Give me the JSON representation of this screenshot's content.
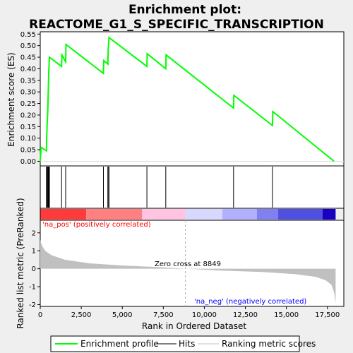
{
  "title_line1": "Enrichment plot:",
  "title_line2": "REACTOME_G1_S_SPECIFIC_TRANSCRIPTION",
  "colors": {
    "enrichment": "#00ff00",
    "hits": "#000000",
    "ranking_fill": "#c0c0c0",
    "pos_label": "#ff0000",
    "neg_label": "#0000ff",
    "zero_line": "#aaaaaa"
  },
  "chart_data": {
    "type": "line",
    "x_range": [
      0,
      18500
    ],
    "x_ticks": [
      0,
      2500,
      5000,
      7500,
      10000,
      12500,
      15000,
      17500
    ],
    "x_tick_labels": [
      "0",
      "2,500",
      "5,000",
      "7,500",
      "10,000",
      "12,500",
      "15,000",
      "17,500"
    ],
    "xlabel": "Rank in Ordered Dataset",
    "es_panel": {
      "ylabel": "Enrichment score (ES)",
      "ylim": [
        -0.02,
        0.56
      ],
      "y_ticks": [
        0.0,
        0.05,
        0.1,
        0.15,
        0.2,
        0.25,
        0.3,
        0.35,
        0.4,
        0.45,
        0.5,
        0.55
      ],
      "y_tick_labels": [
        "0.00",
        "0.05",
        "0.10",
        "0.15",
        "0.20",
        "0.25",
        "0.30",
        "0.35",
        "0.40",
        "0.45",
        "0.50",
        "0.55"
      ],
      "series_name": "Enrichment profile",
      "points": [
        [
          0,
          0.0
        ],
        [
          50,
          0.06
        ],
        [
          380,
          0.045
        ],
        [
          390,
          0.1
        ],
        [
          420,
          0.16
        ],
        [
          460,
          0.22
        ],
        [
          480,
          0.28
        ],
        [
          500,
          0.33
        ],
        [
          520,
          0.39
        ],
        [
          560,
          0.45
        ],
        [
          1300,
          0.41
        ],
        [
          1320,
          0.46
        ],
        [
          1550,
          0.43
        ],
        [
          1570,
          0.505
        ],
        [
          3850,
          0.38
        ],
        [
          3870,
          0.435
        ],
        [
          4120,
          0.42
        ],
        [
          4140,
          0.48
        ],
        [
          4190,
          0.535
        ],
        [
          6500,
          0.41
        ],
        [
          6520,
          0.465
        ],
        [
          7650,
          0.4
        ],
        [
          7670,
          0.46
        ],
        [
          11780,
          0.23
        ],
        [
          11800,
          0.285
        ],
        [
          14150,
          0.155
        ],
        [
          14170,
          0.215
        ],
        [
          17900,
          0.0
        ]
      ]
    },
    "hits": [
      380,
      390,
      420,
      460,
      480,
      500,
      520,
      560,
      1300,
      1550,
      3850,
      4120,
      4140,
      4190,
      6500,
      7650,
      11780,
      14150
    ],
    "heat_bands": [
      {
        "start": 0,
        "end": 2800,
        "color": "#ff3a3a"
      },
      {
        "start": 2800,
        "end": 6200,
        "color": "#ff8080"
      },
      {
        "start": 6200,
        "end": 8849,
        "color": "#ffc4e0"
      },
      {
        "start": 8849,
        "end": 11100,
        "color": "#d8d8ff"
      },
      {
        "start": 11100,
        "end": 13200,
        "color": "#b0b0ff"
      },
      {
        "start": 13200,
        "end": 14500,
        "color": "#8080f0"
      },
      {
        "start": 14500,
        "end": 17200,
        "color": "#5050e0"
      },
      {
        "start": 17200,
        "end": 18000,
        "color": "#1800c0"
      }
    ],
    "rank_panel": {
      "ylabel": "Ranked list metric (PreRanked)",
      "ylim": [
        -2.1,
        2.7
      ],
      "y_ticks": [
        -2,
        -1,
        0,
        1,
        2
      ],
      "y_tick_labels": [
        "-2",
        "-1",
        "0",
        "1",
        "2"
      ],
      "series_name": "Ranking metric scores",
      "points": [
        [
          0,
          1.6
        ],
        [
          100,
          1.3
        ],
        [
          300,
          1.0
        ],
        [
          700,
          0.75
        ],
        [
          1500,
          0.5
        ],
        [
          3000,
          0.3
        ],
        [
          5000,
          0.18
        ],
        [
          7000,
          0.1
        ],
        [
          8849,
          0.0
        ],
        [
          11000,
          -0.1
        ],
        [
          13500,
          -0.18
        ],
        [
          15500,
          -0.3
        ],
        [
          16800,
          -0.45
        ],
        [
          17400,
          -0.65
        ],
        [
          17750,
          -0.9
        ],
        [
          17900,
          -1.3
        ],
        [
          18000,
          -1.9
        ]
      ],
      "zero_cross": 8849
    },
    "annotations": {
      "pos": "'na_pos' (positively correlated)",
      "neg": "'na_neg' (negatively correlated)",
      "zero": "Zero cross at 8849"
    }
  },
  "legend": {
    "items": [
      {
        "label": "Enrichment profile"
      },
      {
        "label": "Hits"
      },
      {
        "label": "Ranking metric scores"
      }
    ]
  }
}
